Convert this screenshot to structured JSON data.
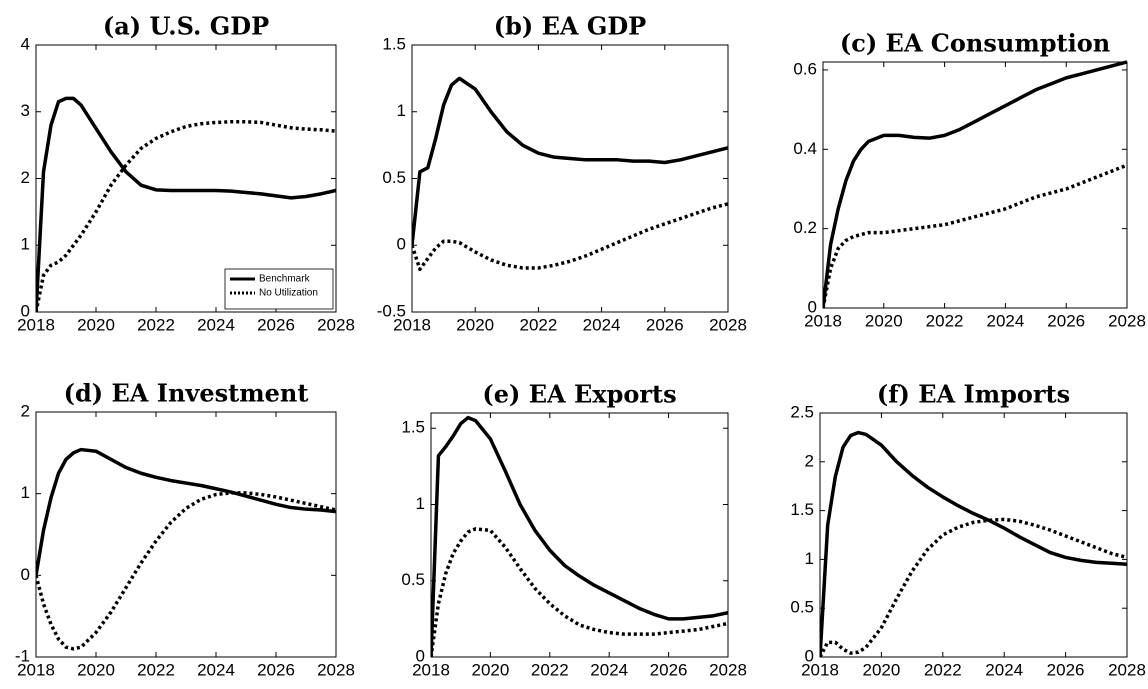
{
  "chart_data": [
    {
      "type": "line",
      "title": "(a) U.S. GDP",
      "x": [
        2018,
        2018.25,
        2018.5,
        2018.75,
        2019,
        2019.25,
        2019.5,
        2020,
        2020.5,
        2021,
        2021.5,
        2022,
        2022.5,
        2023,
        2023.5,
        2024,
        2024.5,
        2025,
        2025.5,
        2026,
        2026.5,
        2027,
        2027.5,
        2028
      ],
      "series": [
        {
          "name": "Benchmark",
          "color": "#000000",
          "style": "solid",
          "values": [
            0,
            2.1,
            2.8,
            3.15,
            3.2,
            3.2,
            3.1,
            2.75,
            2.4,
            2.1,
            1.9,
            1.83,
            1.82,
            1.82,
            1.82,
            1.82,
            1.81,
            1.79,
            1.77,
            1.74,
            1.71,
            1.73,
            1.77,
            1.82
          ]
        },
        {
          "name": "No Utilization",
          "color": "#000000",
          "style": "dotted",
          "values": [
            0,
            0.55,
            0.7,
            0.75,
            0.85,
            1.0,
            1.15,
            1.5,
            1.9,
            2.2,
            2.45,
            2.6,
            2.7,
            2.78,
            2.82,
            2.84,
            2.85,
            2.85,
            2.84,
            2.8,
            2.76,
            2.74,
            2.73,
            2.71
          ]
        }
      ],
      "xlim": [
        2018,
        2028
      ],
      "xticks": [
        2018,
        2020,
        2022,
        2024,
        2026,
        2028
      ],
      "ylim": [
        0,
        4
      ],
      "yticks": [
        0,
        1,
        2,
        3,
        4
      ],
      "legend": "lower right"
    },
    {
      "type": "line",
      "title": "(b) EA GDP",
      "x": [
        2018,
        2018.25,
        2018.5,
        2018.75,
        2019,
        2019.25,
        2019.5,
        2020,
        2020.5,
        2021,
        2021.5,
        2022,
        2022.5,
        2023,
        2023.5,
        2024,
        2024.5,
        2025,
        2025.5,
        2026,
        2026.5,
        2027,
        2027.5,
        2028
      ],
      "series": [
        {
          "color": "#000000",
          "style": "solid",
          "values": [
            0,
            0.55,
            0.58,
            0.8,
            1.05,
            1.2,
            1.25,
            1.17,
            1.0,
            0.85,
            0.75,
            0.69,
            0.66,
            0.65,
            0.64,
            0.64,
            0.64,
            0.63,
            0.63,
            0.62,
            0.64,
            0.67,
            0.7,
            0.73
          ]
        },
        {
          "color": "#000000",
          "style": "dotted",
          "values": [
            0,
            -0.18,
            -0.1,
            -0.02,
            0.03,
            0.03,
            0.02,
            -0.05,
            -0.11,
            -0.15,
            -0.17,
            -0.17,
            -0.15,
            -0.12,
            -0.08,
            -0.03,
            0.02,
            0.07,
            0.12,
            0.16,
            0.2,
            0.24,
            0.28,
            0.31
          ]
        }
      ],
      "xlim": [
        2018,
        2028
      ],
      "xticks": [
        2018,
        2020,
        2022,
        2024,
        2026,
        2028
      ],
      "ylim": [
        -0.5,
        1.5
      ],
      "yticks": [
        -0.5,
        0,
        0.5,
        1,
        1.5
      ]
    },
    {
      "type": "line",
      "title": "(c) EA Consumption",
      "x": [
        2018,
        2018.25,
        2018.5,
        2018.75,
        2019,
        2019.25,
        2019.5,
        2020,
        2020.5,
        2021,
        2021.5,
        2022,
        2022.5,
        2023,
        2023.5,
        2024,
        2024.5,
        2025,
        2025.5,
        2026,
        2026.5,
        2027,
        2027.5,
        2028
      ],
      "series": [
        {
          "color": "#000000",
          "style": "solid",
          "values": [
            0,
            0.16,
            0.25,
            0.32,
            0.37,
            0.4,
            0.42,
            0.435,
            0.435,
            0.43,
            0.428,
            0.435,
            0.45,
            0.47,
            0.49,
            0.51,
            0.53,
            0.55,
            0.565,
            0.58,
            0.59,
            0.6,
            0.61,
            0.62
          ]
        },
        {
          "color": "#000000",
          "style": "dotted",
          "values": [
            0,
            0.1,
            0.15,
            0.17,
            0.18,
            0.185,
            0.19,
            0.19,
            0.195,
            0.2,
            0.205,
            0.21,
            0.22,
            0.23,
            0.24,
            0.25,
            0.265,
            0.28,
            0.29,
            0.3,
            0.315,
            0.33,
            0.345,
            0.36
          ]
        }
      ],
      "xlim": [
        2018,
        2028
      ],
      "xticks": [
        2018,
        2020,
        2022,
        2024,
        2026,
        2028
      ],
      "ylim": [
        0,
        0.62
      ],
      "yticks": [
        0,
        0.2,
        0.4,
        0.6
      ]
    },
    {
      "type": "line",
      "title": "(d) EA Investment",
      "x": [
        2018,
        2018.25,
        2018.5,
        2018.75,
        2019,
        2019.25,
        2019.5,
        2020,
        2020.5,
        2021,
        2021.5,
        2022,
        2022.5,
        2023,
        2023.5,
        2024,
        2024.5,
        2025,
        2025.5,
        2026,
        2026.5,
        2027,
        2027.5,
        2028
      ],
      "series": [
        {
          "color": "#000000",
          "style": "solid",
          "values": [
            0,
            0.55,
            0.95,
            1.25,
            1.42,
            1.5,
            1.54,
            1.52,
            1.42,
            1.32,
            1.25,
            1.2,
            1.16,
            1.13,
            1.1,
            1.06,
            1.02,
            0.97,
            0.92,
            0.87,
            0.83,
            0.81,
            0.8,
            0.78
          ]
        },
        {
          "color": "#000000",
          "style": "dotted",
          "values": [
            0,
            -0.35,
            -0.6,
            -0.78,
            -0.88,
            -0.9,
            -0.88,
            -0.7,
            -0.45,
            -0.15,
            0.15,
            0.42,
            0.65,
            0.82,
            0.93,
            0.99,
            1.01,
            1.01,
            0.99,
            0.96,
            0.92,
            0.88,
            0.84,
            0.8
          ]
        }
      ],
      "xlim": [
        2018,
        2028
      ],
      "xticks": [
        2018,
        2020,
        2022,
        2024,
        2026,
        2028
      ],
      "ylim": [
        -1,
        2
      ],
      "yticks": [
        -1,
        0,
        1,
        2
      ]
    },
    {
      "type": "line",
      "title": "(e) EA Exports",
      "x": [
        2018,
        2018.25,
        2018.5,
        2018.75,
        2019,
        2019.25,
        2019.5,
        2020,
        2020.5,
        2021,
        2021.5,
        2022,
        2022.5,
        2023,
        2023.5,
        2024,
        2024.5,
        2025,
        2025.5,
        2026,
        2026.5,
        2027,
        2027.5,
        2028
      ],
      "series": [
        {
          "color": "#000000",
          "style": "solid",
          "values": [
            0,
            1.32,
            1.38,
            1.45,
            1.53,
            1.57,
            1.55,
            1.43,
            1.22,
            1.0,
            0.83,
            0.7,
            0.6,
            0.53,
            0.47,
            0.42,
            0.37,
            0.32,
            0.28,
            0.25,
            0.25,
            0.26,
            0.27,
            0.29
          ]
        },
        {
          "color": "#000000",
          "style": "dotted",
          "values": [
            0,
            0.35,
            0.55,
            0.68,
            0.76,
            0.82,
            0.84,
            0.83,
            0.72,
            0.58,
            0.45,
            0.35,
            0.27,
            0.21,
            0.18,
            0.16,
            0.15,
            0.15,
            0.15,
            0.16,
            0.17,
            0.18,
            0.2,
            0.22
          ]
        }
      ],
      "xlim": [
        2018,
        2028
      ],
      "xticks": [
        2018,
        2020,
        2022,
        2024,
        2026,
        2028
      ],
      "ylim": [
        0,
        1.6
      ],
      "yticks": [
        0,
        0.5,
        1,
        1.5
      ]
    },
    {
      "type": "line",
      "title": "(f) EA Imports",
      "x": [
        2018,
        2018.25,
        2018.5,
        2018.75,
        2019,
        2019.25,
        2019.5,
        2020,
        2020.5,
        2021,
        2021.5,
        2022,
        2022.5,
        2023,
        2023.5,
        2024,
        2024.5,
        2025,
        2025.5,
        2026,
        2026.5,
        2027,
        2027.5,
        2028
      ],
      "series": [
        {
          "color": "#000000",
          "style": "solid",
          "values": [
            0,
            1.35,
            1.85,
            2.15,
            2.27,
            2.3,
            2.28,
            2.17,
            2.0,
            1.86,
            1.74,
            1.64,
            1.55,
            1.47,
            1.4,
            1.32,
            1.23,
            1.15,
            1.07,
            1.02,
            0.99,
            0.97,
            0.96,
            0.95
          ]
        },
        {
          "color": "#000000",
          "style": "dotted",
          "values": [
            0,
            0.15,
            0.15,
            0.08,
            0.04,
            0.05,
            0.1,
            0.3,
            0.6,
            0.88,
            1.1,
            1.25,
            1.33,
            1.38,
            1.4,
            1.41,
            1.39,
            1.35,
            1.3,
            1.24,
            1.18,
            1.12,
            1.06,
            1.02
          ]
        }
      ],
      "xlim": [
        2018,
        2028
      ],
      "xticks": [
        2018,
        2020,
        2022,
        2024,
        2026,
        2028
      ],
      "ylim": [
        0,
        2.5
      ],
      "yticks": [
        0,
        0.5,
        1,
        1.5,
        2,
        2.5
      ]
    }
  ]
}
